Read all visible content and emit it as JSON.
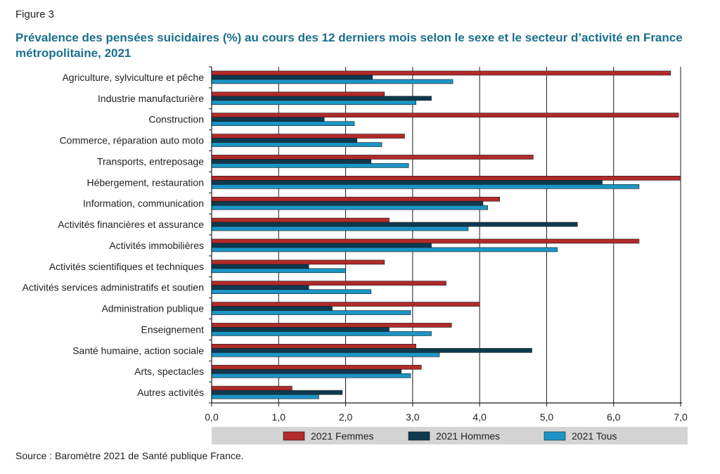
{
  "figure_label": "Figure 3",
  "title": "Prévalence des pensées suicidaires (%) au cours des 12 derniers mois selon le sexe et le secteur d’activité en France métropolitaine, 2021",
  "source": "Source : Baromètre 2021 de Santé publique France.",
  "chart_data": {
    "type": "bar",
    "orientation": "horizontal",
    "categories": [
      "Agriculture, sylviculture et pêche",
      "Industrie manufacturière",
      "Construction",
      "Commerce, réparation auto moto",
      "Transports, entreposage",
      "Hébergement, restauration",
      "Information, communication",
      "Activités financières et assurance",
      "Activités immobilières",
      "Activités scientifiques et techniques",
      "Activités services administratifs et soutien",
      "Administration publique",
      "Enseignement",
      "Santé humaine, action sociale",
      "Arts, spectacles",
      "Autres activités"
    ],
    "series": [
      {
        "name": "2021 Femmes",
        "color": "#b22a2a",
        "values": [
          6.85,
          2.58,
          6.97,
          2.88,
          4.8,
          7.0,
          4.3,
          2.65,
          6.38,
          2.58,
          3.5,
          4.0,
          3.58,
          3.05,
          3.13,
          1.2
        ]
      },
      {
        "name": "2021 Hommes",
        "color": "#0e3a4f",
        "values": [
          2.4,
          3.28,
          1.68,
          2.17,
          2.38,
          5.83,
          4.05,
          5.46,
          3.28,
          1.45,
          1.45,
          1.8,
          2.65,
          4.78,
          2.83,
          1.95
        ]
      },
      {
        "name": "2021 Tous",
        "color": "#1b95c6",
        "values": [
          3.6,
          3.05,
          2.13,
          2.54,
          2.94,
          6.38,
          4.12,
          3.83,
          5.16,
          2.0,
          2.38,
          2.97,
          3.28,
          3.4,
          2.97,
          1.6
        ]
      }
    ],
    "x_ticks": [
      "0,0",
      "1,0",
      "2,0",
      "3,0",
      "4,0",
      "5,0",
      "6,0",
      "7,0"
    ],
    "xlim": [
      0,
      7
    ],
    "grid": "vertical",
    "legend_position": "bottom"
  }
}
